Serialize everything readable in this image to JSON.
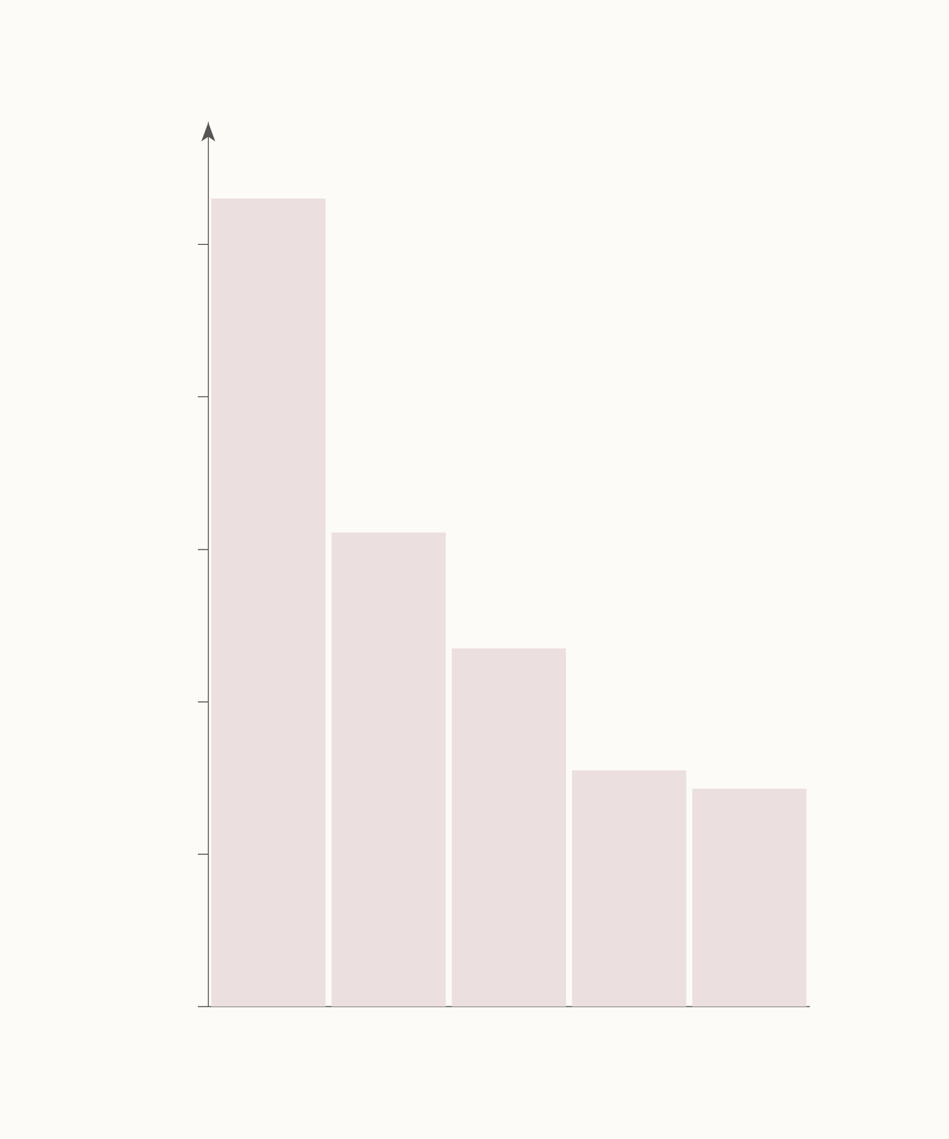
{
  "chart_data": {
    "type": "bar",
    "categories": [
      null,
      null,
      null,
      null,
      null
    ],
    "values": [
      5.3,
      3.11,
      2.35,
      1.55,
      1.43
    ],
    "color": "#ecdfdf",
    "ylim": [
      0,
      5.8
    ],
    "yticks": [
      0,
      1,
      2,
      3,
      4,
      5
    ],
    "grid": false,
    "tick_labels": false
  }
}
